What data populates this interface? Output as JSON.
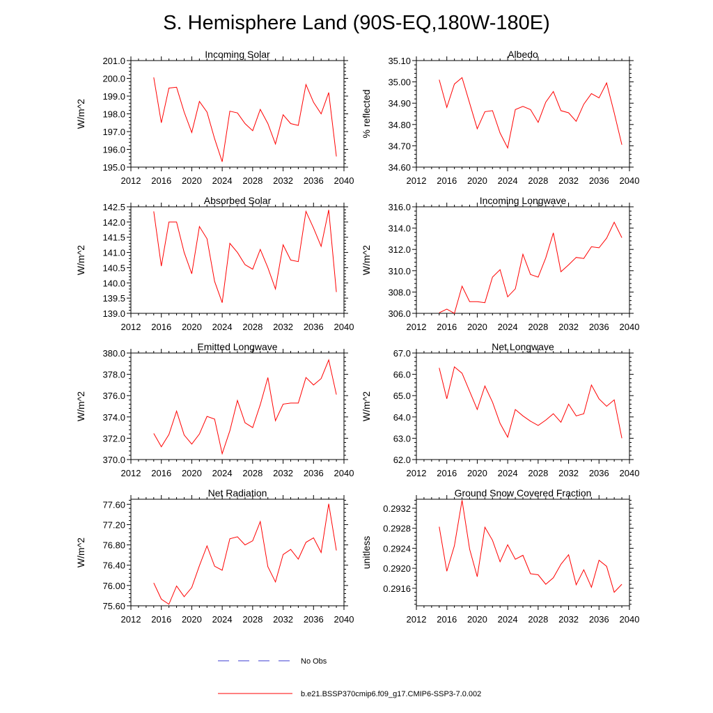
{
  "title": "S. Hemisphere Land (90S-EQ,180W-180E)",
  "colors": {
    "series": "#ff0000",
    "obs": "#3a3ad0",
    "axis": "#000000"
  },
  "legend": [
    {
      "label": "No Obs",
      "style": "dashed",
      "color": "#3a3ad0"
    },
    {
      "label": "b.e21.BSSP370cmip6.f09_g17.CMIP6-SSP3-7.0.002",
      "style": "solid",
      "color": "#ff0000"
    }
  ],
  "chart_data": [
    {
      "type": "line",
      "title": "Incoming Solar",
      "ylabel": "W/m^2",
      "xlim": [
        2012,
        2040
      ],
      "ylim": [
        195.0,
        201.0
      ],
      "xticks": [
        2012,
        2016,
        2020,
        2024,
        2028,
        2032,
        2036,
        2040
      ],
      "yticks": [
        195.0,
        196.0,
        197.0,
        198.0,
        199.0,
        200.0,
        201.0
      ],
      "ytick_labels": [
        "195.0",
        "196.0",
        "197.0",
        "198.0",
        "199.0",
        "200.0",
        "201.0"
      ],
      "x": [
        2015,
        2016,
        2017,
        2018,
        2019,
        2020,
        2021,
        2022,
        2023,
        2024,
        2025,
        2026,
        2027,
        2028,
        2029,
        2030,
        2031,
        2032,
        2033,
        2034,
        2035,
        2036,
        2037,
        2038,
        2039
      ],
      "values": [
        200.05,
        197.5,
        199.45,
        199.5,
        198.1,
        196.95,
        198.7,
        198.1,
        196.6,
        195.3,
        198.15,
        198.05,
        197.45,
        197.05,
        198.25,
        197.45,
        196.3,
        197.95,
        197.45,
        197.35,
        199.65,
        198.65,
        198.0,
        199.2,
        195.6
      ]
    },
    {
      "type": "line",
      "title": "Albedo",
      "ylabel": "% reflected",
      "xlim": [
        2012,
        2040
      ],
      "ylim": [
        34.6,
        35.1
      ],
      "xticks": [
        2012,
        2016,
        2020,
        2024,
        2028,
        2032,
        2036,
        2040
      ],
      "yticks": [
        34.6,
        34.7,
        34.8,
        34.9,
        35.0,
        35.1
      ],
      "ytick_labels": [
        "34.60",
        "34.70",
        "34.80",
        "34.90",
        "35.00",
        "35.10"
      ],
      "x": [
        2015,
        2016,
        2017,
        2018,
        2019,
        2020,
        2021,
        2022,
        2023,
        2024,
        2025,
        2026,
        2027,
        2028,
        2029,
        2030,
        2031,
        2032,
        2033,
        2034,
        2035,
        2036,
        2037,
        2038,
        2039
      ],
      "values": [
        35.01,
        34.88,
        34.99,
        35.02,
        34.9,
        34.78,
        34.86,
        34.865,
        34.76,
        34.69,
        34.87,
        34.885,
        34.87,
        34.81,
        34.905,
        34.955,
        34.865,
        34.855,
        34.815,
        34.895,
        34.945,
        34.925,
        34.995,
        34.855,
        34.705
      ]
    },
    {
      "type": "line",
      "title": "Absorbed Solar",
      "ylabel": "W/m^2",
      "xlim": [
        2012,
        2040
      ],
      "ylim": [
        139.0,
        142.5
      ],
      "xticks": [
        2012,
        2016,
        2020,
        2024,
        2028,
        2032,
        2036,
        2040
      ],
      "yticks": [
        139.0,
        139.5,
        140.0,
        140.5,
        141.0,
        141.5,
        142.0,
        142.5
      ],
      "ytick_labels": [
        "139.0",
        "139.5",
        "140.0",
        "140.5",
        "141.0",
        "141.5",
        "142.0",
        "142.5"
      ],
      "x": [
        2015,
        2016,
        2017,
        2018,
        2019,
        2020,
        2021,
        2022,
        2023,
        2024,
        2025,
        2026,
        2027,
        2028,
        2029,
        2030,
        2031,
        2032,
        2033,
        2034,
        2035,
        2036,
        2037,
        2038,
        2039
      ],
      "values": [
        142.35,
        140.55,
        142.0,
        142.0,
        141.0,
        140.3,
        141.85,
        141.45,
        140.05,
        139.35,
        141.3,
        141.0,
        140.6,
        140.45,
        141.1,
        140.5,
        139.8,
        141.25,
        140.75,
        140.7,
        142.35,
        141.8,
        141.2,
        142.4,
        139.7
      ]
    },
    {
      "type": "line",
      "title": "Incoming Longwave",
      "ylabel": "W/m^2",
      "xlim": [
        2012,
        2040
      ],
      "ylim": [
        306.0,
        316.0
      ],
      "xticks": [
        2012,
        2016,
        2020,
        2024,
        2028,
        2032,
        2036,
        2040
      ],
      "yticks": [
        306.0,
        308.0,
        310.0,
        312.0,
        314.0,
        316.0
      ],
      "ytick_labels": [
        "306.0",
        "308.0",
        "310.0",
        "312.0",
        "314.0",
        "316.0"
      ],
      "x": [
        2015,
        2016,
        2017,
        2018,
        2019,
        2020,
        2021,
        2022,
        2023,
        2024,
        2025,
        2026,
        2027,
        2028,
        2029,
        2030,
        2031,
        2032,
        2033,
        2034,
        2035,
        2036,
        2037,
        2038,
        2039
      ],
      "values": [
        306.05,
        306.4,
        306.0,
        308.55,
        307.1,
        307.1,
        307.0,
        309.4,
        310.1,
        307.55,
        308.3,
        311.55,
        309.65,
        309.4,
        311.2,
        313.55,
        309.9,
        310.55,
        311.25,
        311.15,
        312.25,
        312.15,
        313.05,
        314.55,
        313.1
      ]
    },
    {
      "type": "line",
      "title": "Emitted Longwave",
      "ylabel": "W/m^2",
      "xlim": [
        2012,
        2040
      ],
      "ylim": [
        370.0,
        380.0
      ],
      "xticks": [
        2012,
        2016,
        2020,
        2024,
        2028,
        2032,
        2036,
        2040
      ],
      "yticks": [
        370.0,
        372.0,
        374.0,
        376.0,
        378.0,
        380.0
      ],
      "ytick_labels": [
        "370.0",
        "372.0",
        "374.0",
        "376.0",
        "378.0",
        "380.0"
      ],
      "x": [
        2015,
        2016,
        2017,
        2018,
        2019,
        2020,
        2021,
        2022,
        2023,
        2024,
        2025,
        2026,
        2027,
        2028,
        2029,
        2030,
        2031,
        2032,
        2033,
        2034,
        2035,
        2036,
        2037,
        2038,
        2039
      ],
      "values": [
        372.45,
        371.2,
        372.35,
        374.55,
        372.3,
        371.45,
        372.4,
        374.05,
        373.8,
        370.55,
        372.7,
        375.55,
        373.45,
        373.0,
        375.15,
        377.7,
        373.65,
        375.2,
        375.3,
        375.3,
        377.7,
        377.0,
        377.6,
        379.35,
        376.1
      ]
    },
    {
      "type": "line",
      "title": "Net Longwave",
      "ylabel": "W/m^2",
      "xlim": [
        2012,
        2040
      ],
      "ylim": [
        62.0,
        67.0
      ],
      "xticks": [
        2012,
        2016,
        2020,
        2024,
        2028,
        2032,
        2036,
        2040
      ],
      "yticks": [
        62.0,
        63.0,
        64.0,
        65.0,
        66.0,
        67.0
      ],
      "ytick_labels": [
        "62.0",
        "63.0",
        "64.0",
        "65.0",
        "66.0",
        "67.0"
      ],
      "x": [
        2015,
        2016,
        2017,
        2018,
        2019,
        2020,
        2021,
        2022,
        2023,
        2024,
        2025,
        2026,
        2027,
        2028,
        2029,
        2030,
        2031,
        2032,
        2033,
        2034,
        2035,
        2036,
        2037,
        2038,
        2039
      ],
      "values": [
        66.3,
        64.85,
        66.35,
        66.05,
        65.2,
        64.35,
        65.45,
        64.7,
        63.7,
        63.05,
        64.35,
        64.05,
        63.8,
        63.6,
        63.85,
        64.15,
        63.75,
        64.6,
        64.05,
        64.15,
        65.5,
        64.85,
        64.5,
        64.8,
        63.0
      ]
    },
    {
      "type": "line",
      "title": "Net Radiation",
      "ylabel": "W/m^2",
      "xlim": [
        2012,
        2040
      ],
      "ylim": [
        75.6,
        77.7
      ],
      "xticks": [
        2012,
        2016,
        2020,
        2024,
        2028,
        2032,
        2036,
        2040
      ],
      "yticks": [
        75.6,
        76.0,
        76.4,
        76.8,
        77.2,
        77.6
      ],
      "ytick_labels": [
        "75.60",
        "76.00",
        "76.40",
        "76.80",
        "77.20",
        "77.60"
      ],
      "x": [
        2015,
        2016,
        2017,
        2018,
        2019,
        2020,
        2021,
        2022,
        2023,
        2024,
        2025,
        2026,
        2027,
        2028,
        2029,
        2030,
        2031,
        2032,
        2033,
        2034,
        2035,
        2036,
        2037,
        2038,
        2039
      ],
      "values": [
        76.05,
        75.73,
        75.63,
        75.99,
        75.78,
        75.96,
        76.39,
        76.78,
        76.38,
        76.3,
        76.92,
        76.96,
        76.8,
        76.88,
        77.26,
        76.37,
        76.07,
        76.61,
        76.71,
        76.52,
        76.85,
        76.94,
        76.65,
        77.61,
        76.69
      ]
    },
    {
      "type": "line",
      "title": "Ground Snow Covered Fraction",
      "ylabel": "unitless",
      "xlim": [
        2012,
        2040
      ],
      "ylim": [
        0.29125,
        0.29338
      ],
      "xticks": [
        2012,
        2016,
        2020,
        2024,
        2028,
        2032,
        2036,
        2040
      ],
      "yticks": [
        0.2916,
        0.292,
        0.2924,
        0.2928,
        0.2932
      ],
      "ytick_labels": [
        "0.2916",
        "0.2920",
        "0.2924",
        "0.2928",
        "0.2932"
      ],
      "x": [
        2015,
        2016,
        2017,
        2018,
        2019,
        2020,
        2021,
        2022,
        2023,
        2024,
        2025,
        2026,
        2027,
        2028,
        2029,
        2030,
        2031,
        2032,
        2033,
        2034,
        2035,
        2036,
        2037,
        2038,
        2039
      ],
      "values": [
        0.29283,
        0.29194,
        0.29245,
        0.29336,
        0.29238,
        0.29183,
        0.29282,
        0.29256,
        0.29213,
        0.29247,
        0.29218,
        0.29226,
        0.29189,
        0.29187,
        0.29168,
        0.29181,
        0.29208,
        0.29227,
        0.29167,
        0.29197,
        0.29162,
        0.29216,
        0.29204,
        0.29152,
        0.29168
      ]
    }
  ]
}
